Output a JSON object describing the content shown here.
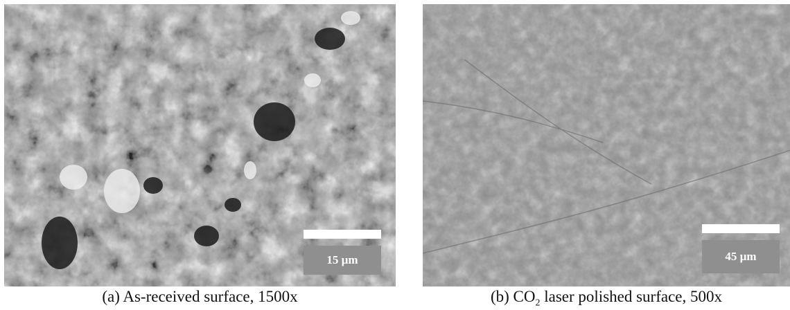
{
  "panels": [
    {
      "id": "a",
      "scale_label": "15 µm",
      "caption": "(a) As-received surface, 1500x"
    },
    {
      "id": "b",
      "scale_label": "45 µm",
      "caption_prefix": "(b) CO",
      "caption_sub": "2",
      "caption_suffix": " laser polished surface, 500x"
    }
  ]
}
